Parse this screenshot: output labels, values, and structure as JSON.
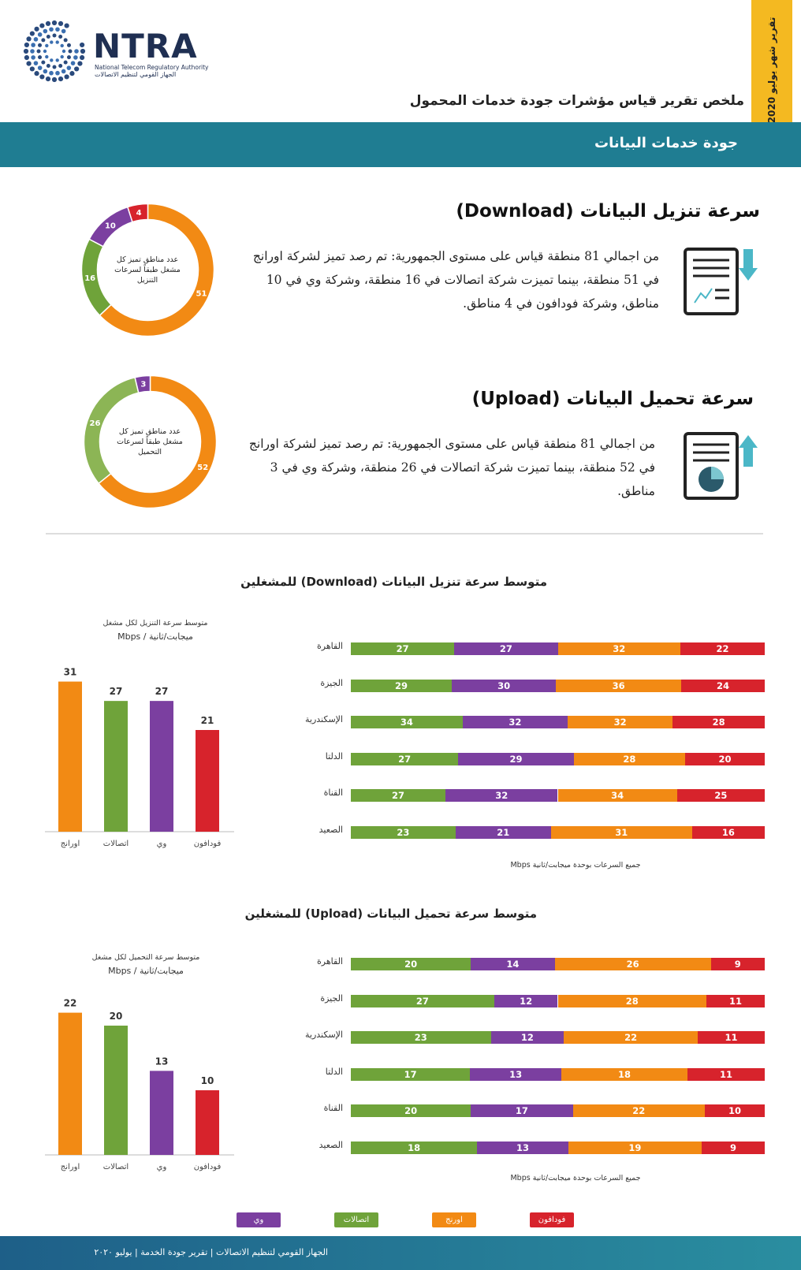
{
  "header": {
    "logo_text": "NTRA",
    "logo_en": "National Telecom Regulatory Authority",
    "logo_ar": "الجهاز القومي لتنظيم الاتصالات",
    "month_tag": "تقرير شهر يوليو 2020",
    "report_title": "ملخص تقرير قياس مؤشرات جودة خدمات المحمول",
    "band_title": "جودة خدمات البيانات"
  },
  "colors": {
    "orange": "#f28a14",
    "green": "#6fa33a",
    "purple": "#7b3fa0",
    "red": "#d7232c",
    "teal": "#1f7d92",
    "yellow": "#f4b921"
  },
  "download": {
    "title": "سرعة تنزيل البيانات (Download)",
    "paragraph": "من اجمالي 81 منطقة قياس على مستوى الجمهورية: تم رصد تميز لشركة اورانج في 51 منطقة، بينما تميزت شركة اتصالات في 16 منطقة، وشركة وي في 10 مناطق، وشركة فودافون في 4 مناطق.",
    "donut_label": "عدد مناطق تميز كل مشغل طبقاً لسرعات التنزيل",
    "icon": "document-download-icon"
  },
  "upload": {
    "title": "سرعة تحميل البيانات (Upload)",
    "paragraph": "من اجمالي 81 منطقة قياس على مستوى الجمهورية: تم رصد تميز لشركة اورانج في 52 منطقة، بينما تميزت شركة اتصالات في 26 منطقة، وشركة وي في 3 مناطق.",
    "donut_label": "عدد مناطق تميز كل مشغل طبقاً لسرعات التحميل",
    "icon": "document-upload-icon"
  },
  "download_section": {
    "title": "متوسط سرعة تنزيل البيانات (Download) للمشغلين",
    "bar_caption": "متوسط سرعة التنزيل لكل مشغل",
    "bar_unit": "ميجابت/ثانية / Mbps",
    "note": "جميع السرعات بوحدة ميجابت/ثانية Mbps"
  },
  "upload_section": {
    "title": "متوسط سرعة تحميل البيانات (Upload) للمشغلين",
    "bar_caption": "متوسط سرعة التحميل لكل مشغل",
    "bar_unit": "ميجابت/ثانية / Mbps",
    "note": "جميع السرعات بوحدة ميجابت/ثانية Mbps"
  },
  "legend": [
    {
      "label": "وي",
      "color": "#7b3fa0"
    },
    {
      "label": "اتصالات",
      "color": "#6fa33a"
    },
    {
      "label": "اورنج",
      "color": "#f28a14"
    },
    {
      "label": "فودافون",
      "color": "#d7232c"
    }
  ],
  "footer": {
    "text": "الجهاز القومي لتنظيم الاتصالات   |   تقرير جودة الخدمة   |   يوليو ٢٠٢٠"
  },
  "chart_data": [
    {
      "type": "pie",
      "id": "download-donut",
      "categories": [
        "اورانج",
        "اتصالات",
        "وي",
        "فودافون"
      ],
      "values": [
        51,
        16,
        10,
        4
      ],
      "colors": [
        "#f28a14",
        "#6fa33a",
        "#7b3fa0",
        "#d7232c"
      ]
    },
    {
      "type": "pie",
      "id": "upload-donut",
      "categories": [
        "اورانج",
        "اتصالات",
        "وي"
      ],
      "values": [
        52,
        26,
        3
      ],
      "colors": [
        "#f28a14",
        "#8cb555",
        "#7b3fa0"
      ]
    },
    {
      "type": "bar",
      "id": "download-avg",
      "categories": [
        "اورانج",
        "اتصالات",
        "وي",
        "فودافون"
      ],
      "values": [
        31,
        27,
        27,
        21
      ],
      "colors": [
        "#f28a14",
        "#6fa33a",
        "#7b3fa0",
        "#d7232c"
      ],
      "ylim": [
        0,
        35
      ]
    },
    {
      "type": "bar",
      "id": "download-regions",
      "stacked": true,
      "categories": [
        "القاهرة",
        "الجيزة",
        "الإسكندرية",
        "الدلتا",
        "القناة",
        "الصعيد"
      ],
      "series": [
        {
          "name": "اتصالات",
          "color": "#6fa33a",
          "values": [
            27,
            29,
            34,
            27,
            27,
            23
          ]
        },
        {
          "name": "وي",
          "color": "#7b3fa0",
          "values": [
            27,
            30,
            32,
            29,
            32,
            21
          ]
        },
        {
          "name": "اورنج",
          "color": "#f28a14",
          "values": [
            32,
            36,
            32,
            28,
            34,
            31
          ]
        },
        {
          "name": "فودافون",
          "color": "#d7232c",
          "values": [
            22,
            24,
            28,
            20,
            25,
            16
          ]
        }
      ]
    },
    {
      "type": "bar",
      "id": "upload-avg",
      "categories": [
        "اورانج",
        "اتصالات",
        "وي",
        "فودافون"
      ],
      "values": [
        22,
        20,
        13,
        10
      ],
      "colors": [
        "#f28a14",
        "#6fa33a",
        "#7b3fa0",
        "#d7232c"
      ],
      "ylim": [
        0,
        25
      ]
    },
    {
      "type": "bar",
      "id": "upload-regions",
      "stacked": true,
      "categories": [
        "القاهرة",
        "الجيزة",
        "الإسكندرية",
        "الدلتا",
        "القناة",
        "الصعيد"
      ],
      "series": [
        {
          "name": "اتصالات",
          "color": "#6fa33a",
          "values": [
            20,
            27,
            23,
            17,
            20,
            18
          ]
        },
        {
          "name": "وي",
          "color": "#7b3fa0",
          "values": [
            14,
            12,
            12,
            13,
            17,
            13
          ]
        },
        {
          "name": "اورنج",
          "color": "#f28a14",
          "values": [
            26,
            28,
            22,
            18,
            22,
            19
          ]
        },
        {
          "name": "فودافون",
          "color": "#d7232c",
          "values": [
            9,
            11,
            11,
            11,
            10,
            9
          ]
        }
      ]
    }
  ]
}
